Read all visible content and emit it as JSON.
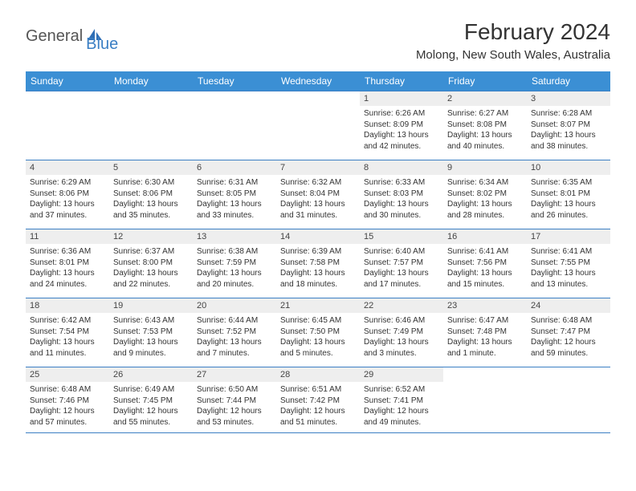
{
  "logo": {
    "general": "General",
    "blue": "Blue"
  },
  "title": {
    "month": "February 2024",
    "location": "Molong, New South Wales, Australia"
  },
  "days": [
    "Sunday",
    "Monday",
    "Tuesday",
    "Wednesday",
    "Thursday",
    "Friday",
    "Saturday"
  ],
  "colors": {
    "header_bg": "#3b8fd4",
    "border": "#3b7fc4",
    "daynum_bg": "#eeeeee",
    "logo_blue": "#3b7fc4"
  },
  "grid": [
    [
      {
        "empty": true
      },
      {
        "empty": true
      },
      {
        "empty": true
      },
      {
        "empty": true
      },
      {
        "num": "1",
        "sunrise": "Sunrise: 6:26 AM",
        "sunset": "Sunset: 8:09 PM",
        "daylight": "Daylight: 13 hours and 42 minutes."
      },
      {
        "num": "2",
        "sunrise": "Sunrise: 6:27 AM",
        "sunset": "Sunset: 8:08 PM",
        "daylight": "Daylight: 13 hours and 40 minutes."
      },
      {
        "num": "3",
        "sunrise": "Sunrise: 6:28 AM",
        "sunset": "Sunset: 8:07 PM",
        "daylight": "Daylight: 13 hours and 38 minutes."
      }
    ],
    [
      {
        "num": "4",
        "sunrise": "Sunrise: 6:29 AM",
        "sunset": "Sunset: 8:06 PM",
        "daylight": "Daylight: 13 hours and 37 minutes."
      },
      {
        "num": "5",
        "sunrise": "Sunrise: 6:30 AM",
        "sunset": "Sunset: 8:06 PM",
        "daylight": "Daylight: 13 hours and 35 minutes."
      },
      {
        "num": "6",
        "sunrise": "Sunrise: 6:31 AM",
        "sunset": "Sunset: 8:05 PM",
        "daylight": "Daylight: 13 hours and 33 minutes."
      },
      {
        "num": "7",
        "sunrise": "Sunrise: 6:32 AM",
        "sunset": "Sunset: 8:04 PM",
        "daylight": "Daylight: 13 hours and 31 minutes."
      },
      {
        "num": "8",
        "sunrise": "Sunrise: 6:33 AM",
        "sunset": "Sunset: 8:03 PM",
        "daylight": "Daylight: 13 hours and 30 minutes."
      },
      {
        "num": "9",
        "sunrise": "Sunrise: 6:34 AM",
        "sunset": "Sunset: 8:02 PM",
        "daylight": "Daylight: 13 hours and 28 minutes."
      },
      {
        "num": "10",
        "sunrise": "Sunrise: 6:35 AM",
        "sunset": "Sunset: 8:01 PM",
        "daylight": "Daylight: 13 hours and 26 minutes."
      }
    ],
    [
      {
        "num": "11",
        "sunrise": "Sunrise: 6:36 AM",
        "sunset": "Sunset: 8:01 PM",
        "daylight": "Daylight: 13 hours and 24 minutes."
      },
      {
        "num": "12",
        "sunrise": "Sunrise: 6:37 AM",
        "sunset": "Sunset: 8:00 PM",
        "daylight": "Daylight: 13 hours and 22 minutes."
      },
      {
        "num": "13",
        "sunrise": "Sunrise: 6:38 AM",
        "sunset": "Sunset: 7:59 PM",
        "daylight": "Daylight: 13 hours and 20 minutes."
      },
      {
        "num": "14",
        "sunrise": "Sunrise: 6:39 AM",
        "sunset": "Sunset: 7:58 PM",
        "daylight": "Daylight: 13 hours and 18 minutes."
      },
      {
        "num": "15",
        "sunrise": "Sunrise: 6:40 AM",
        "sunset": "Sunset: 7:57 PM",
        "daylight": "Daylight: 13 hours and 17 minutes."
      },
      {
        "num": "16",
        "sunrise": "Sunrise: 6:41 AM",
        "sunset": "Sunset: 7:56 PM",
        "daylight": "Daylight: 13 hours and 15 minutes."
      },
      {
        "num": "17",
        "sunrise": "Sunrise: 6:41 AM",
        "sunset": "Sunset: 7:55 PM",
        "daylight": "Daylight: 13 hours and 13 minutes."
      }
    ],
    [
      {
        "num": "18",
        "sunrise": "Sunrise: 6:42 AM",
        "sunset": "Sunset: 7:54 PM",
        "daylight": "Daylight: 13 hours and 11 minutes."
      },
      {
        "num": "19",
        "sunrise": "Sunrise: 6:43 AM",
        "sunset": "Sunset: 7:53 PM",
        "daylight": "Daylight: 13 hours and 9 minutes."
      },
      {
        "num": "20",
        "sunrise": "Sunrise: 6:44 AM",
        "sunset": "Sunset: 7:52 PM",
        "daylight": "Daylight: 13 hours and 7 minutes."
      },
      {
        "num": "21",
        "sunrise": "Sunrise: 6:45 AM",
        "sunset": "Sunset: 7:50 PM",
        "daylight": "Daylight: 13 hours and 5 minutes."
      },
      {
        "num": "22",
        "sunrise": "Sunrise: 6:46 AM",
        "sunset": "Sunset: 7:49 PM",
        "daylight": "Daylight: 13 hours and 3 minutes."
      },
      {
        "num": "23",
        "sunrise": "Sunrise: 6:47 AM",
        "sunset": "Sunset: 7:48 PM",
        "daylight": "Daylight: 13 hours and 1 minute."
      },
      {
        "num": "24",
        "sunrise": "Sunrise: 6:48 AM",
        "sunset": "Sunset: 7:47 PM",
        "daylight": "Daylight: 12 hours and 59 minutes."
      }
    ],
    [
      {
        "num": "25",
        "sunrise": "Sunrise: 6:48 AM",
        "sunset": "Sunset: 7:46 PM",
        "daylight": "Daylight: 12 hours and 57 minutes."
      },
      {
        "num": "26",
        "sunrise": "Sunrise: 6:49 AM",
        "sunset": "Sunset: 7:45 PM",
        "daylight": "Daylight: 12 hours and 55 minutes."
      },
      {
        "num": "27",
        "sunrise": "Sunrise: 6:50 AM",
        "sunset": "Sunset: 7:44 PM",
        "daylight": "Daylight: 12 hours and 53 minutes."
      },
      {
        "num": "28",
        "sunrise": "Sunrise: 6:51 AM",
        "sunset": "Sunset: 7:42 PM",
        "daylight": "Daylight: 12 hours and 51 minutes."
      },
      {
        "num": "29",
        "sunrise": "Sunrise: 6:52 AM",
        "sunset": "Sunset: 7:41 PM",
        "daylight": "Daylight: 12 hours and 49 minutes."
      },
      {
        "empty": true
      },
      {
        "empty": true
      }
    ]
  ]
}
